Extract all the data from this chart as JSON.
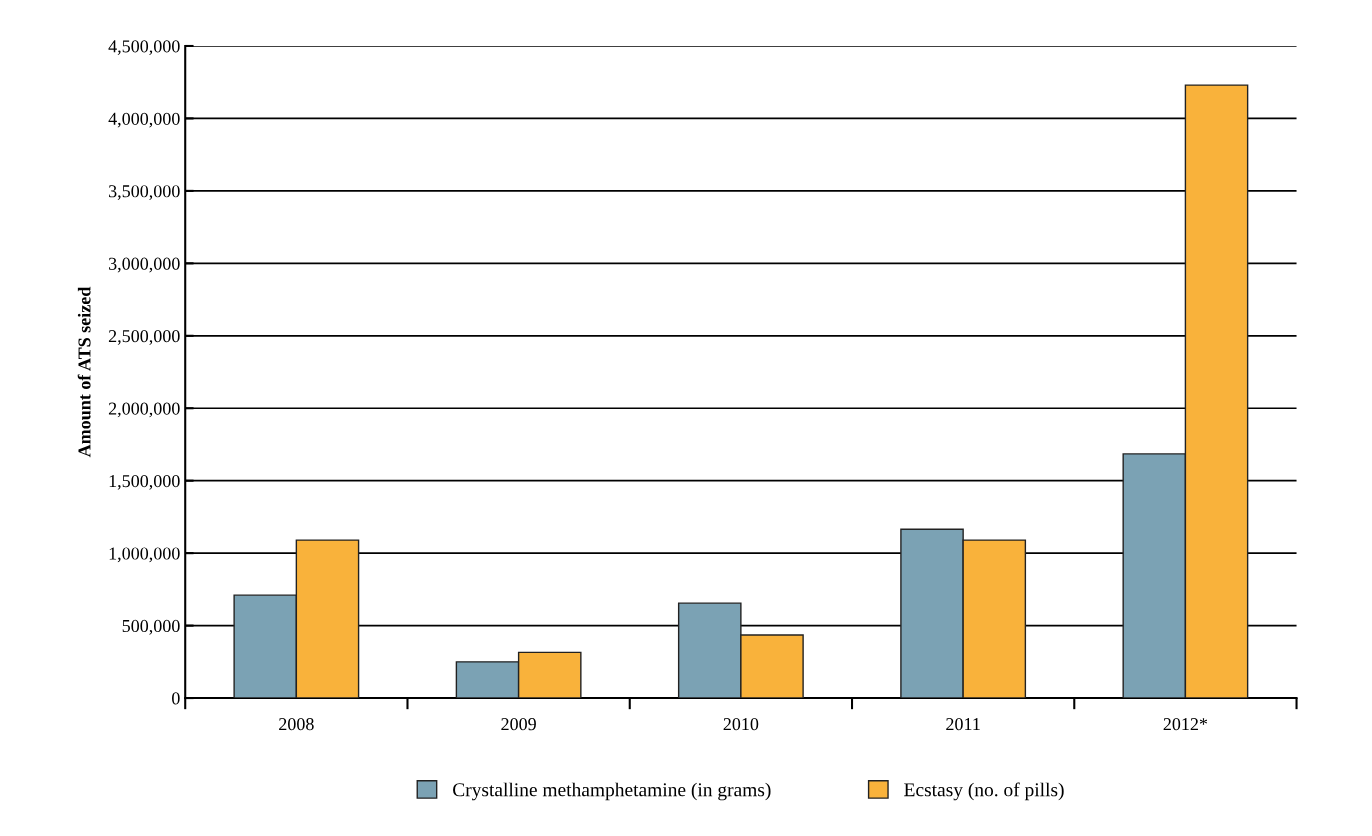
{
  "chart_data": {
    "type": "bar",
    "ylabel": "Amount of ATS seized",
    "categories": [
      "2008",
      "2009",
      "2010",
      "2011",
      "2012*"
    ],
    "series": [
      {
        "name": "Crystalline methamphetamine (in grams)",
        "color": "#7ba2b4",
        "values": [
          710000,
          250000,
          655000,
          1165000,
          1685000
        ]
      },
      {
        "name": "Ecstasy (no. of pills)",
        "color": "#f9b23b",
        "values": [
          1090000,
          315000,
          435000,
          1090000,
          4230000
        ]
      }
    ],
    "ylim": [
      0,
      4500000
    ],
    "yticks": [
      {
        "value": 0,
        "label": "0"
      },
      {
        "value": 500000,
        "label": "500,000"
      },
      {
        "value": 1000000,
        "label": "1,000,000"
      },
      {
        "value": 1500000,
        "label": "1,500,000"
      },
      {
        "value": 2000000,
        "label": "2,000,000"
      },
      {
        "value": 2500000,
        "label": "2,500,000"
      },
      {
        "value": 3000000,
        "label": "3,000,000"
      },
      {
        "value": 3500000,
        "label": "3,500,000"
      },
      {
        "value": 4000000,
        "label": "4,000,000"
      },
      {
        "value": 4500000,
        "label": "4,500,000"
      }
    ],
    "grid": "y",
    "legend": "bottom"
  }
}
